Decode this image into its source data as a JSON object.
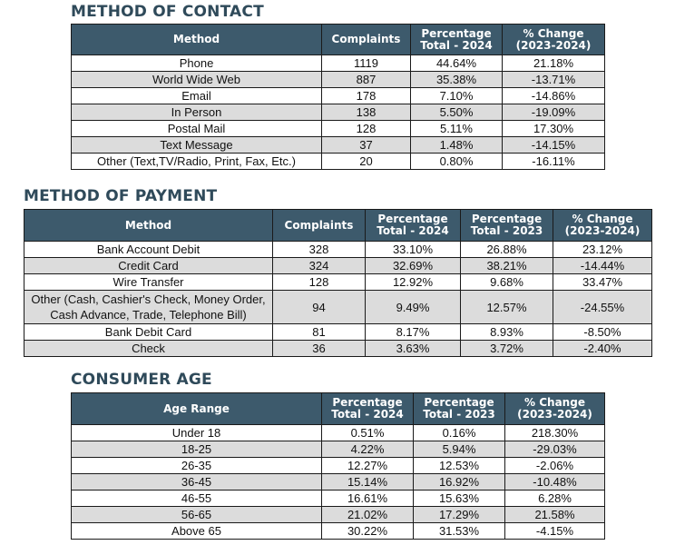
{
  "contact": {
    "title": "METHOD OF CONTACT",
    "headers": [
      {
        "l1": "Method",
        "l2": ""
      },
      {
        "l1": "Complaints",
        "l2": ""
      },
      {
        "l1": "Percentage",
        "l2": "Total - 2024"
      },
      {
        "l1": "% Change",
        "l2": "(2023-2024)"
      }
    ],
    "rows": [
      [
        "Phone",
        "1119",
        "44.64%",
        "21.18%"
      ],
      [
        "World Wide Web",
        "887",
        "35.38%",
        "-13.71%"
      ],
      [
        "Email",
        "178",
        "7.10%",
        "-14.86%"
      ],
      [
        "In Person",
        "138",
        "5.50%",
        "-19.09%"
      ],
      [
        "Postal Mail",
        "128",
        "5.11%",
        "17.30%"
      ],
      [
        "Text Message",
        "37",
        "1.48%",
        "-14.15%"
      ],
      [
        "Other (Text,TV/Radio, Print, Fax, Etc.)",
        "20",
        "0.80%",
        "-16.11%"
      ]
    ]
  },
  "payment": {
    "title": "METHOD OF PAYMENT",
    "headers": [
      {
        "l1": "Method",
        "l2": ""
      },
      {
        "l1": "Complaints",
        "l2": ""
      },
      {
        "l1": "Percentage",
        "l2": "Total - 2024"
      },
      {
        "l1": "Percentage",
        "l2": "Total - 2023"
      },
      {
        "l1": "% Change",
        "l2": "(2023-2024)"
      }
    ],
    "rows": [
      [
        "Bank Account Debit",
        "328",
        "33.10%",
        "26.88%",
        "23.12%"
      ],
      [
        "Credit Card",
        "324",
        "32.69%",
        "38.21%",
        "-14.44%"
      ],
      [
        "Wire Transfer",
        "128",
        "12.92%",
        "9.68%",
        "33.47%"
      ],
      [
        "Other (Cash, Cashier's Check, Money Order, Cash Advance, Trade, Telephone Bill)",
        "94",
        "9.49%",
        "12.57%",
        "-24.55%"
      ],
      [
        "Bank Debit Card",
        "81",
        "8.17%",
        "8.93%",
        "-8.50%"
      ],
      [
        "Check",
        "36",
        "3.63%",
        "3.72%",
        "-2.40%"
      ]
    ]
  },
  "age": {
    "title": "CONSUMER AGE",
    "headers": [
      {
        "l1": "Age Range",
        "l2": ""
      },
      {
        "l1": "Percentage",
        "l2": "Total - 2024"
      },
      {
        "l1": "Percentage",
        "l2": "Total - 2023"
      },
      {
        "l1": "% Change",
        "l2": "(2023-2024)"
      }
    ],
    "rows": [
      [
        "Under 18",
        "0.51%",
        "0.16%",
        "218.30%"
      ],
      [
        "18-25",
        "4.22%",
        "5.94%",
        "-29.03%"
      ],
      [
        "26-35",
        "12.27%",
        "12.53%",
        "-2.06%"
      ],
      [
        "36-45",
        "15.14%",
        "16.92%",
        "-10.48%"
      ],
      [
        "46-55",
        "16.61%",
        "15.63%",
        "6.28%"
      ],
      [
        "56-65",
        "21.02%",
        "17.29%",
        "21.58%"
      ],
      [
        "Above 65",
        "30.22%",
        "31.53%",
        "-4.15%"
      ]
    ]
  }
}
